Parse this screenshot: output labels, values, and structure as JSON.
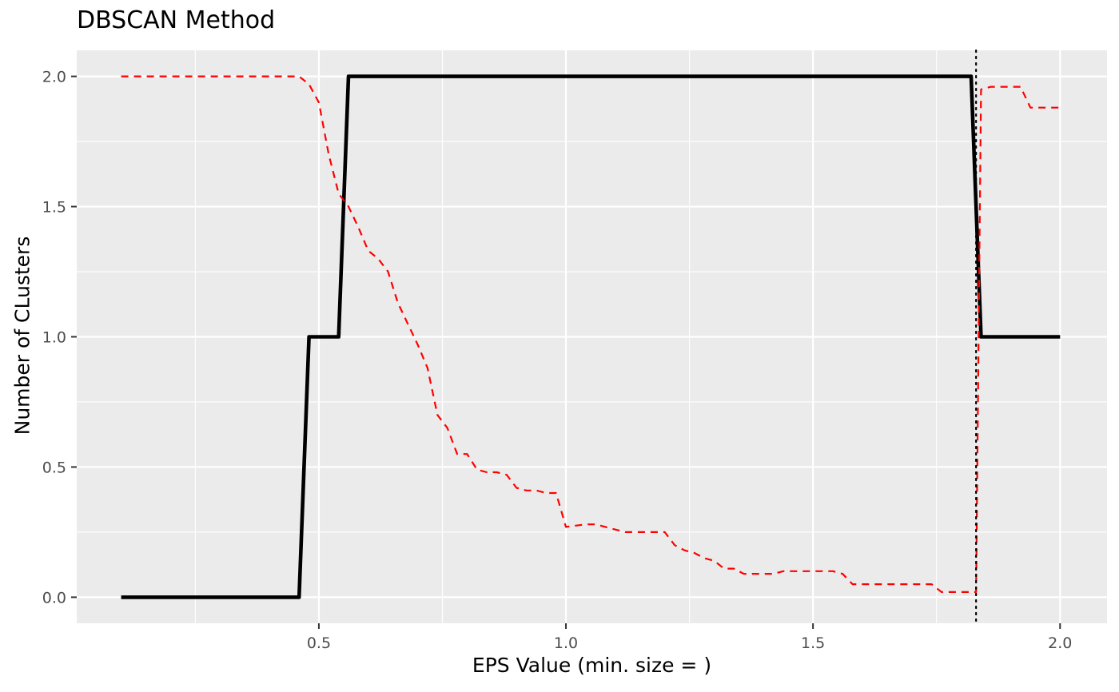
{
  "chart_data": {
    "type": "line",
    "title": "DBSCAN Method",
    "xlabel": "EPS Value (min. size = )",
    "ylabel": "Number of CLusters",
    "xlim": [
      0.01,
      2.095
    ],
    "ylim": [
      -0.1,
      2.1
    ],
    "x_ticks": [
      0.5,
      1.0,
      1.5,
      2.0
    ],
    "x_tick_labels": [
      "0.5",
      "1.0",
      "1.5",
      "2.0"
    ],
    "y_ticks": [
      0.0,
      0.5,
      1.0,
      1.5,
      2.0
    ],
    "y_tick_labels": [
      "0.0",
      "0.5",
      "1.0",
      "1.5",
      "2.0"
    ],
    "grid": true,
    "legend": "none",
    "vline_x": 1.83,
    "series": [
      {
        "style": "solid",
        "color": "#000000",
        "x": [
          0.1,
          0.46,
          0.48,
          0.54,
          0.56,
          1.82,
          1.84,
          2.0
        ],
        "values": [
          0,
          0,
          1,
          1,
          2,
          2,
          1,
          1
        ]
      },
      {
        "style": "dashed",
        "color": "#ff0000",
        "x": [
          0.1,
          0.46,
          0.48,
          0.5,
          0.52,
          0.54,
          0.56,
          0.58,
          0.6,
          0.62,
          0.64,
          0.66,
          0.68,
          0.7,
          0.72,
          0.74,
          0.76,
          0.78,
          0.8,
          0.82,
          0.84,
          0.86,
          0.88,
          0.9,
          0.92,
          0.94,
          0.96,
          0.98,
          1.0,
          1.04,
          1.06,
          1.1,
          1.12,
          1.16,
          1.2,
          1.22,
          1.24,
          1.26,
          1.28,
          1.3,
          1.32,
          1.34,
          1.36,
          1.4,
          1.42,
          1.44,
          1.48,
          1.52,
          1.54,
          1.56,
          1.58,
          1.62,
          1.66,
          1.7,
          1.72,
          1.74,
          1.76,
          1.8,
          1.82,
          1.83,
          1.84,
          1.86,
          1.9,
          1.92,
          1.94,
          1.96,
          2.0
        ],
        "values": [
          2.0,
          2.0,
          1.97,
          1.9,
          1.7,
          1.55,
          1.5,
          1.42,
          1.33,
          1.3,
          1.25,
          1.13,
          1.05,
          0.97,
          0.88,
          0.7,
          0.65,
          0.55,
          0.55,
          0.49,
          0.48,
          0.48,
          0.47,
          0.42,
          0.41,
          0.41,
          0.4,
          0.4,
          0.27,
          0.28,
          0.28,
          0.26,
          0.25,
          0.25,
          0.25,
          0.2,
          0.18,
          0.17,
          0.15,
          0.14,
          0.11,
          0.11,
          0.09,
          0.09,
          0.09,
          0.1,
          0.1,
          0.1,
          0.1,
          0.09,
          0.05,
          0.05,
          0.05,
          0.05,
          0.05,
          0.05,
          0.02,
          0.02,
          0.02,
          0.02,
          1.95,
          1.96,
          1.96,
          1.96,
          1.88,
          1.88,
          1.88
        ]
      }
    ]
  }
}
